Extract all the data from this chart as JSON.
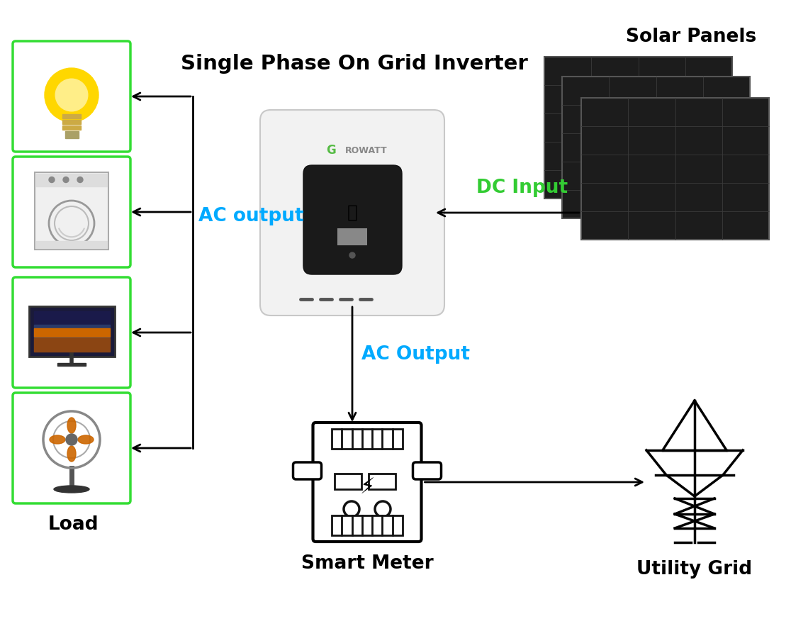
{
  "title": "Single Phase On Grid Inverter",
  "background_color": "#ffffff",
  "title_fontsize": 21,
  "labels": {
    "ac_output_left": "AC output",
    "dc_input": "DC Input",
    "ac_output_bottom": "AC Output",
    "load": "Load",
    "solar_panels": "Solar Panels",
    "smart_meter": "Smart Meter",
    "utility_grid": "Utility Grid"
  },
  "colors": {
    "ac_label": "#00aaff",
    "dc_label": "#33cc33",
    "black": "#000000",
    "white": "#ffffff",
    "box_border": "#33dd33",
    "inverter_body": "#f2f2f2",
    "inverter_border": "#cccccc",
    "dark_panel": "#1c1c1c",
    "panel_grid": "#3a3a3a",
    "growatt_green": "#55bb44",
    "display_dark": "#1a1a1a",
    "leaf_green": "#44bb44"
  }
}
